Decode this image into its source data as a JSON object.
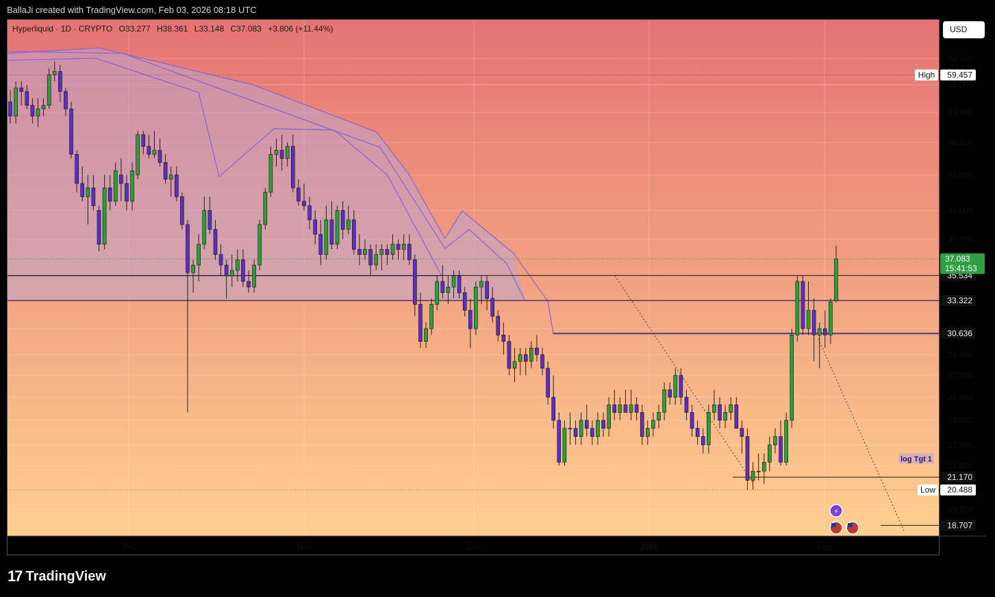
{
  "header": {
    "attribution": "BallaJi created with TradingView.com, Feb 03, 2026 08:18 UTC"
  },
  "legend": {
    "symbol": "Hyperliquid · 1D · CRYPTO",
    "open": "O33.277",
    "high": "H38.361",
    "low": "L33.148",
    "close": "C37.083",
    "change": "+3.806 (+11.44%)"
  },
  "currency_button": "USD",
  "footer": {
    "brand": "TradingView"
  },
  "colors": {
    "bg_top": "#e57373",
    "bg_bottom": "#ffcf8f",
    "bull": "#2e9e3a",
    "bear": "#5b2fbf",
    "channel_line": "#8a63d2",
    "channel_fill": "#b9a6d6",
    "current_price_tag": "#2ea043",
    "hline": "#1a1a1a"
  },
  "chart_data": {
    "type": "candlestick",
    "scale": "log",
    "ylim": [
      18.2,
      68.5
    ],
    "price_ticks": [
      "62.000",
      "58.000",
      "54.000",
      "50.000",
      "46.000",
      "42.000",
      "39.000",
      "31.000",
      "29.000",
      "27.500",
      "26.000",
      "24.500",
      "23.000",
      "21.800",
      "19.500"
    ],
    "x_ticks": [
      "Oct",
      "Nov",
      "Dec",
      "2026",
      "Feb"
    ],
    "high_label": "High",
    "high_value": "59.457",
    "low_label": "Low",
    "low_value": "20.488",
    "current_price": "37.083",
    "countdown": "15:41:53",
    "horizontal_levels": [
      "35.534",
      "33.322",
      "30.636",
      "21.170",
      "18.707"
    ],
    "annotation": "log Tgt 1",
    "series_ohlc": [
      [
        55.5,
        57.2,
        52.5,
        53.5
      ],
      [
        53.5,
        58.5,
        52.5,
        57.5
      ],
      [
        57.5,
        58.5,
        55.0,
        57.0
      ],
      [
        57.0,
        58.0,
        54.5,
        55.0
      ],
      [
        55.0,
        56.0,
        52.5,
        53.5
      ],
      [
        53.5,
        56.0,
        52.0,
        54.5
      ],
      [
        54.5,
        56.0,
        53.5,
        55.0
      ],
      [
        55.0,
        60.5,
        54.5,
        59.5
      ],
      [
        59.5,
        61.5,
        58.5,
        60.0
      ],
      [
        60.0,
        61.0,
        55.5,
        57.0
      ],
      [
        57.0,
        57.5,
        53.5,
        54.5
      ],
      [
        54.5,
        55.5,
        48.0,
        48.5
      ],
      [
        48.5,
        49.0,
        44.0,
        45.0
      ],
      [
        45.0,
        47.0,
        43.0,
        43.5
      ],
      [
        43.5,
        46.0,
        40.5,
        44.5
      ],
      [
        44.5,
        46.0,
        42.0,
        42.5
      ],
      [
        42.0,
        42.5,
        37.8,
        38.5
      ],
      [
        38.5,
        46.0,
        38.0,
        44.5
      ],
      [
        44.5,
        46.0,
        42.0,
        43.0
      ],
      [
        43.0,
        47.5,
        42.5,
        46.5
      ],
      [
        46.0,
        48.0,
        43.0,
        45.0
      ],
      [
        45.0,
        46.0,
        42.0,
        43.0
      ],
      [
        43.0,
        47.5,
        42.0,
        46.5
      ],
      [
        46.0,
        51.5,
        45.5,
        51.0
      ],
      [
        51.0,
        51.5,
        48.5,
        49.5
      ],
      [
        49.5,
        51.0,
        48.0,
        48.5
      ],
      [
        48.5,
        51.5,
        48.0,
        49.0
      ],
      [
        49.0,
        50.5,
        47.0,
        47.5
      ],
      [
        47.5,
        48.5,
        45.0,
        45.5
      ],
      [
        45.5,
        47.0,
        43.5,
        46.0
      ],
      [
        46.0,
        47.0,
        43.0,
        43.5
      ],
      [
        43.5,
        44.0,
        40.0,
        40.5
      ],
      [
        40.5,
        41.0,
        25.0,
        35.8
      ],
      [
        35.8,
        37.0,
        34.0,
        36.5
      ],
      [
        36.5,
        39.5,
        35.0,
        38.5
      ],
      [
        38.5,
        43.5,
        38.0,
        42.0
      ],
      [
        42.0,
        43.5,
        39.5,
        40.0
      ],
      [
        40.0,
        41.0,
        37.0,
        37.5
      ],
      [
        37.5,
        38.5,
        35.5,
        36.5
      ],
      [
        36.5,
        37.0,
        33.5,
        35.5
      ],
      [
        35.5,
        37.5,
        34.5,
        36.0
      ],
      [
        36.0,
        38.0,
        35.0,
        37.0
      ],
      [
        37.0,
        38.0,
        34.5,
        35.0
      ],
      [
        35.0,
        36.0,
        34.0,
        34.5
      ],
      [
        34.5,
        37.0,
        34.0,
        36.5
      ],
      [
        36.5,
        41.0,
        36.0,
        40.5
      ],
      [
        40.5,
        44.5,
        40.0,
        44.0
      ],
      [
        44.0,
        49.5,
        43.5,
        48.5
      ],
      [
        48.5,
        50.5,
        47.0,
        49.0
      ],
      [
        49.0,
        51.0,
        46.5,
        48.0
      ],
      [
        48.0,
        50.0,
        47.0,
        49.5
      ],
      [
        49.5,
        51.0,
        44.0,
        44.5
      ],
      [
        44.5,
        45.5,
        42.5,
        43.0
      ],
      [
        43.0,
        45.0,
        42.0,
        42.5
      ],
      [
        42.5,
        43.5,
        40.0,
        41.0
      ],
      [
        41.0,
        42.0,
        38.5,
        39.5
      ],
      [
        39.5,
        41.0,
        36.5,
        37.5
      ],
      [
        37.5,
        42.5,
        37.0,
        41.0
      ],
      [
        41.0,
        43.0,
        38.0,
        38.5
      ],
      [
        38.5,
        42.5,
        38.0,
        42.0
      ],
      [
        42.0,
        43.0,
        39.0,
        40.0
      ],
      [
        40.0,
        42.5,
        39.5,
        41.0
      ],
      [
        41.0,
        42.0,
        37.5,
        38.0
      ],
      [
        38.0,
        39.5,
        36.5,
        37.5
      ],
      [
        37.5,
        39.0,
        37.0,
        38.0
      ],
      [
        38.0,
        38.5,
        35.5,
        36.5
      ],
      [
        36.5,
        38.5,
        36.0,
        37.5
      ],
      [
        37.5,
        38.5,
        36.0,
        38.0
      ],
      [
        38.0,
        38.5,
        36.5,
        37.5
      ],
      [
        37.5,
        39.5,
        37.0,
        38.5
      ],
      [
        38.5,
        39.0,
        37.0,
        38.0
      ],
      [
        38.0,
        39.5,
        37.0,
        38.5
      ],
      [
        38.5,
        39.5,
        36.5,
        37.0
      ],
      [
        37.0,
        37.5,
        32.0,
        33.0
      ],
      [
        33.0,
        34.0,
        29.5,
        30.0
      ],
      [
        30.0,
        31.5,
        29.5,
        31.0
      ],
      [
        31.0,
        33.5,
        30.5,
        33.0
      ],
      [
        33.0,
        35.5,
        32.5,
        35.0
      ],
      [
        35.0,
        36.5,
        33.5,
        34.0
      ],
      [
        34.0,
        35.5,
        33.0,
        34.5
      ],
      [
        34.5,
        36.0,
        33.5,
        35.5
      ],
      [
        35.5,
        36.0,
        33.5,
        34.0
      ],
      [
        34.0,
        34.5,
        32.0,
        32.5
      ],
      [
        32.5,
        33.5,
        29.5,
        31.0
      ],
      [
        31.0,
        35.0,
        30.5,
        34.5
      ],
      [
        34.5,
        35.5,
        33.0,
        35.0
      ],
      [
        35.0,
        35.5,
        32.5,
        33.5
      ],
      [
        33.5,
        34.5,
        31.5,
        32.0
      ],
      [
        32.0,
        32.5,
        30.0,
        30.5
      ],
      [
        30.5,
        31.5,
        29.0,
        30.0
      ],
      [
        30.0,
        30.5,
        27.5,
        28.0
      ],
      [
        28.0,
        29.5,
        27.0,
        28.5
      ],
      [
        28.5,
        29.5,
        27.5,
        29.0
      ],
      [
        29.0,
        29.5,
        27.5,
        28.5
      ],
      [
        28.5,
        30.0,
        28.0,
        29.5
      ],
      [
        29.5,
        30.5,
        28.5,
        29.0
      ],
      [
        29.0,
        29.5,
        27.5,
        28.0
      ],
      [
        28.0,
        28.5,
        25.5,
        26.0
      ],
      [
        26.0,
        27.5,
        24.0,
        24.5
      ],
      [
        24.5,
        25.0,
        21.8,
        22.0
      ],
      [
        22.0,
        24.5,
        21.8,
        24.0
      ],
      [
        24.0,
        25.0,
        23.0,
        24.0
      ],
      [
        24.0,
        24.5,
        23.0,
        23.5
      ],
      [
        23.5,
        25.0,
        23.0,
        24.5
      ],
      [
        24.5,
        25.5,
        23.5,
        24.0
      ],
      [
        24.0,
        24.5,
        23.0,
        23.5
      ],
      [
        23.5,
        25.0,
        23.0,
        24.5
      ],
      [
        24.5,
        25.0,
        23.5,
        24.0
      ],
      [
        24.0,
        26.0,
        23.5,
        25.5
      ],
      [
        25.5,
        26.5,
        24.5,
        25.0
      ],
      [
        25.0,
        26.0,
        24.5,
        25.5
      ],
      [
        25.5,
        26.5,
        25.0,
        25.0
      ],
      [
        25.0,
        26.5,
        24.5,
        25.5
      ],
      [
        25.5,
        26.0,
        24.5,
        25.0
      ],
      [
        25.0,
        25.5,
        23.0,
        23.5
      ],
      [
        23.5,
        24.5,
        23.0,
        24.0
      ],
      [
        24.0,
        25.0,
        23.5,
        24.5
      ],
      [
        24.5,
        25.5,
        24.0,
        25.0
      ],
      [
        25.0,
        27.0,
        24.5,
        26.5
      ],
      [
        26.5,
        27.0,
        25.5,
        26.0
      ],
      [
        26.0,
        28.0,
        25.5,
        27.5
      ],
      [
        27.5,
        28.0,
        25.5,
        26.0
      ],
      [
        26.0,
        26.5,
        24.5,
        25.0
      ],
      [
        25.0,
        25.5,
        23.5,
        24.0
      ],
      [
        24.0,
        24.5,
        23.0,
        23.5
      ],
      [
        23.5,
        24.0,
        22.5,
        23.0
      ],
      [
        23.0,
        25.5,
        22.5,
        25.0
      ],
      [
        25.0,
        26.5,
        24.5,
        25.5
      ],
      [
        25.5,
        26.0,
        24.0,
        24.5
      ],
      [
        24.5,
        25.5,
        24.0,
        25.0
      ],
      [
        25.0,
        26.0,
        24.5,
        25.5
      ],
      [
        25.5,
        26.0,
        24.0,
        24.0
      ],
      [
        24.0,
        24.5,
        22.5,
        23.5
      ],
      [
        23.5,
        24.0,
        20.5,
        21.0
      ],
      [
        21.0,
        22.0,
        20.5,
        21.5
      ],
      [
        21.5,
        22.5,
        21.0,
        21.5
      ],
      [
        21.5,
        22.5,
        20.8,
        22.0
      ],
      [
        22.0,
        23.5,
        21.5,
        23.0
      ],
      [
        23.0,
        24.0,
        22.5,
        23.5
      ],
      [
        23.5,
        24.5,
        21.8,
        22.0
      ],
      [
        22.0,
        25.0,
        21.8,
        24.5
      ],
      [
        24.5,
        31.0,
        24.0,
        30.5
      ],
      [
        30.5,
        35.5,
        30.0,
        35.0
      ],
      [
        35.0,
        35.5,
        30.5,
        31.0
      ],
      [
        31.0,
        35.0,
        30.5,
        32.5
      ],
      [
        32.5,
        33.5,
        28.5,
        30.5
      ],
      [
        30.5,
        31.5,
        28.0,
        31.0
      ],
      [
        31.0,
        32.5,
        29.5,
        30.5
      ],
      [
        30.5,
        33.5,
        29.8,
        33.2
      ],
      [
        33.277,
        38.361,
        33.148,
        37.083
      ]
    ]
  }
}
